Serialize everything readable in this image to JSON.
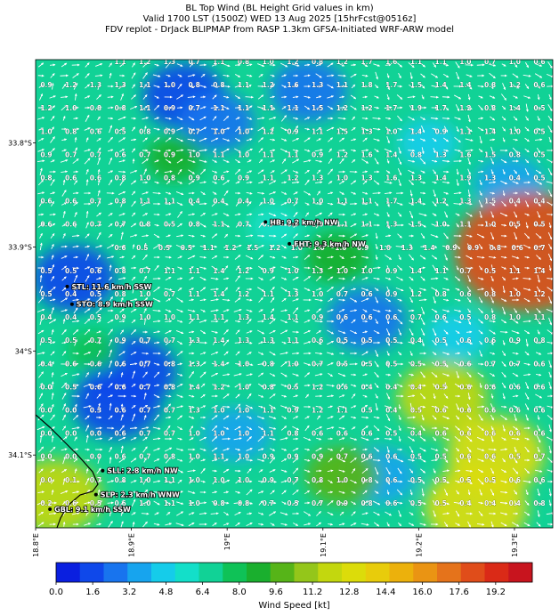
{
  "title": {
    "line1": "BL Top Wind (BL Height Grid values in km)",
    "line2": "Valid 1700 LST (1500Z) WED 13 Aug 2025 [15hrFcst@0516z]",
    "line3": "FDV replot - DrJack BLIPMAP from RASP 1.3km GFSA-Initiated WRF-ARW model"
  },
  "axes": {
    "lat_labels": [
      "33.8°S",
      "33.9°S",
      "34°S",
      "34.1°S"
    ],
    "lat_values": [
      -33.8,
      -33.9,
      -34.0,
      -34.1
    ],
    "lon_labels": [
      "18.8°E",
      "18.9°E",
      "19°E",
      "19.1°E",
      "19.2°E",
      "19.3°E"
    ],
    "lon_values": [
      18.8,
      18.9,
      19.0,
      19.1,
      19.2,
      19.3
    ],
    "lon_range": [
      18.8,
      19.34
    ],
    "lat_range": [
      -34.17,
      -33.72
    ]
  },
  "grid_values": [
    [
      "1.1",
      "1.2",
      "1.3",
      "0.7",
      "1.1",
      "0.8",
      "1.0",
      "1.2",
      "0.8",
      "1.2",
      "1.7",
      "1.6",
      "1.1",
      "1.1",
      "1.0",
      "0.7",
      "1.0",
      "0.6"
    ],
    [
      "0.9",
      "1.2",
      "1.3",
      "1.3",
      "1.1",
      "1.0",
      "0.8",
      "0.8",
      "1.1",
      "1.2",
      "1.6",
      "1.3",
      "1.1",
      "1.8",
      "1.7",
      "1.5",
      "1.4",
      "1.4",
      "0.8",
      "1.2",
      "0.6"
    ],
    [
      "1.2",
      "1.0",
      "0.8",
      "0.8",
      "1.1",
      "0.9",
      "0.7",
      "1.1",
      "1.1",
      "1.1",
      "1.1",
      "1.5",
      "1.2",
      "1.2",
      "1.7",
      "1.9",
      "1.7",
      "1.2",
      "0.8",
      "1.4",
      "0.5"
    ],
    [
      "1.0",
      "0.8",
      "0.6",
      "0.5",
      "0.8",
      "0.9",
      "0.7",
      "1.0",
      "1.0",
      "1.2",
      "0.9",
      "1.1",
      "1.5",
      "1.3",
      "1.0",
      "1.4",
      "0.9",
      "1.1",
      "1.4",
      "1.0",
      "0.5"
    ],
    [
      "0.9",
      "0.7",
      "0.7",
      "0.6",
      "0.7",
      "0.9",
      "1.0",
      "1.1",
      "1.0",
      "1.1",
      "1.1",
      "0.9",
      "1.2",
      "1.6",
      "1.4",
      "0.8",
      "1.3",
      "1.6",
      "1.5",
      "0.8",
      "0.5"
    ],
    [
      "0.8",
      "0.6",
      "0.6",
      "0.8",
      "1.0",
      "0.8",
      "0.9",
      "0.6",
      "0.9",
      "1.1",
      "1.2",
      "1.3",
      "1.0",
      "1.3",
      "1.6",
      "1.3",
      "1.4",
      "1.9",
      "1.3",
      "0.4",
      "0.5"
    ],
    [
      "0.6",
      "0.6",
      "0.7",
      "0.8",
      "1.1",
      "1.1",
      "0.4",
      "0.4",
      "0.4",
      "1.0",
      "0.7",
      "1.0",
      "1.1",
      "1.1",
      "1.7",
      "1.4",
      "1.2",
      "1.3",
      "1.5",
      "0.4",
      "0.4"
    ],
    [
      "0.6",
      "0.6",
      "0.7",
      "0.7",
      "0.8",
      "0.5",
      "0.8",
      "1.1",
      "0.7",
      "0.7",
      "0.9",
      "1.0",
      "1.1",
      "1.1",
      "1.3",
      "1.5",
      "1.0",
      "1.1",
      "1.0",
      "0.5",
      "0.5"
    ],
    [
      "0.6",
      "0.5",
      "0.5",
      "0.5",
      "1.1",
      "1.2",
      "1.5",
      "1.2",
      "1.0",
      "1.0",
      "1.0",
      "0.9",
      "1.0",
      "1.3",
      "1.4",
      "0.9",
      "0.9",
      "0.8",
      "0.6",
      "0.7"
    ],
    [
      "0.5",
      "0.5",
      "0.6",
      "0.8",
      "0.7",
      "1.1",
      "1.1",
      "1.4",
      "1.2",
      "0.9",
      "1.0",
      "1.3",
      "1.0",
      "1.0",
      "0.9",
      "1.4",
      "1.1",
      "0.7",
      "0.5",
      "1.1",
      "1.4"
    ],
    [
      "0.5",
      "0.4",
      "0.5",
      "0.8",
      "1.0",
      "0.7",
      "1.1",
      "1.4",
      "1.2",
      "1.1",
      "1.3",
      "1.0",
      "0.7",
      "0.6",
      "0.9",
      "1.2",
      "0.8",
      "0.6",
      "0.8",
      "1.0",
      "1.2"
    ],
    [
      "0.4",
      "0.4",
      "0.5",
      "0.9",
      "1.0",
      "1.0",
      "1.1",
      "1.1",
      "1.3",
      "1.4",
      "1.1",
      "0.9",
      "0.6",
      "0.6",
      "0.6",
      "0.7",
      "0.6",
      "0.5",
      "0.8",
      "1.0",
      "1.1"
    ],
    [
      "0.5",
      "0.5",
      "0.7",
      "0.9",
      "0.7",
      "0.7",
      "1.3",
      "1.4",
      "1.3",
      "1.3",
      "1.1",
      "0.6",
      "0.5",
      "0.5",
      "0.5",
      "0.4",
      "0.5",
      "0.6",
      "0.6",
      "0.9",
      "0.8"
    ],
    [
      "0.4",
      "0.6",
      "0.6",
      "0.6",
      "0.7",
      "0.8",
      "1.3",
      "1.4",
      "1.0",
      "0.8",
      "1.0",
      "0.7",
      "0.5",
      "0.5",
      "0.5",
      "0.5",
      "0.5",
      "0.6",
      "0.7",
      "0.7",
      "0.6"
    ],
    [
      "0.0",
      "0.5",
      "0.6",
      "0.6",
      "0.7",
      "0.8",
      "1.4",
      "1.2",
      "1.0",
      "0.8",
      "0.5",
      "1.2",
      "0.6",
      "0.4",
      "0.4",
      "0.4",
      "0.5",
      "0.6",
      "0.6",
      "0.6",
      "0.6"
    ],
    [
      "0.0",
      "0.0",
      "0.3",
      "0.6",
      "0.7",
      "0.7",
      "1.3",
      "1.0",
      "1.0",
      "1.1",
      "0.9",
      "1.2",
      "1.1",
      "0.5",
      "0.4",
      "0.5",
      "0.6",
      "0.6",
      "0.6",
      "0.6",
      "0.6"
    ],
    [
      "0.0",
      "0.0",
      "0.0",
      "0.6",
      "0.7",
      "0.7",
      "1.0",
      "1.0",
      "1.0",
      "1.1",
      "0.8",
      "0.6",
      "0.6",
      "0.6",
      "0.5",
      "0.4",
      "0.6",
      "0.6",
      "0.6",
      "0.6",
      "0.6"
    ],
    [
      "0.0",
      "0.0",
      "0.0",
      "0.6",
      "0.7",
      "0.8",
      "1.0",
      "1.1",
      "1.0",
      "0.9",
      "0.9",
      "0.9",
      "0.7",
      "0.6",
      "0.6",
      "0.5",
      "0.5",
      "0.6",
      "0.6",
      "0.5",
      "0.7"
    ],
    [
      "0.0",
      "0.1",
      "0.7",
      "0.8",
      "1.0",
      "1.1",
      "1.0",
      "1.0",
      "1.0",
      "0.9",
      "0.7",
      "0.8",
      "1.0",
      "0.8",
      "0.6",
      "0.5",
      "0.5",
      "0.5",
      "0.5",
      "0.6",
      "0.6"
    ],
    [
      "0.2",
      "0.6",
      "0.5",
      "0.6",
      "1.0",
      "1.1",
      "1.0",
      "0.8",
      "0.8",
      "0.7",
      "0.5",
      "0.7",
      "0.9",
      "0.8",
      "0.6",
      "0.5",
      "0.5",
      "0.4",
      "0.4",
      "0.4",
      "0.8"
    ]
  ],
  "stations": [
    {
      "label": "HB: 9.2 km/h NW",
      "lon": 19.04,
      "lat": -33.876
    },
    {
      "label": "FHT: 9.3 km/h NW",
      "lon": 19.065,
      "lat": -33.897
    },
    {
      "label": "STL: 11.6 km/h SSW",
      "lon": 18.833,
      "lat": -33.938
    },
    {
      "label": "STO: 8.9 km/h SSW",
      "lon": 18.838,
      "lat": -33.955
    },
    {
      "label": "SLL: 2.8 km/h NW",
      "lon": 18.87,
      "lat": -34.115
    },
    {
      "label": "SLP: 2.3 km/h WNW",
      "lon": 18.863,
      "lat": -34.138
    },
    {
      "label": "GBL: 9.1 km/h SSW",
      "lon": 18.815,
      "lat": -34.152
    }
  ],
  "colorbar": {
    "title": "Wind Speed [kt]",
    "ticks": [
      "0.0",
      "1.6",
      "3.2",
      "4.8",
      "6.4",
      "8.0",
      "9.6",
      "11.2",
      "12.8",
      "14.4",
      "16.0",
      "17.6",
      "19.2"
    ],
    "min": 0,
    "max": 20.8,
    "colors": [
      "#0a1fe0",
      "#0f48ea",
      "#1874ee",
      "#17a4ee",
      "#15ccea",
      "#13dfc9",
      "#11d296",
      "#0fc257",
      "#1aaf2e",
      "#56b418",
      "#94c61a",
      "#c3d70e",
      "#dcdc0a",
      "#e8cc0b",
      "#ecb10c",
      "#ea9413",
      "#e5731b",
      "#e04d1a",
      "#da2a17",
      "#c8141e"
    ]
  },
  "field": {
    "blobs": [
      {
        "lon": 18.955,
        "lat": -33.755,
        "speed": 2.0
      },
      {
        "lon": 18.99,
        "lat": -33.78,
        "speed": 3.0
      },
      {
        "lon": 19.085,
        "lat": -33.75,
        "speed": 2.6
      },
      {
        "lon": 19.21,
        "lat": -33.8,
        "speed": 4.4
      },
      {
        "lon": 19.295,
        "lat": -33.84,
        "speed": 3.2
      },
      {
        "lon": 18.84,
        "lat": -33.93,
        "speed": 2.0
      },
      {
        "lon": 18.9,
        "lat": -34.02,
        "speed": 1.2
      },
      {
        "lon": 18.885,
        "lat": -34.05,
        "speed": 1.4
      },
      {
        "lon": 19.145,
        "lat": -33.97,
        "speed": 2.4
      },
      {
        "lon": 19.05,
        "lat": -33.88,
        "speed": 5.2
      },
      {
        "lon": 19.24,
        "lat": -33.985,
        "speed": 4.2
      },
      {
        "lon": 19.01,
        "lat": -34.08,
        "speed": 3.6
      },
      {
        "lon": 19.16,
        "lat": -34.12,
        "speed": 3.2
      },
      {
        "lon": 19.225,
        "lat": -34.045,
        "speed": 12.0
      },
      {
        "lon": 19.28,
        "lat": -34.1,
        "speed": 12.8
      },
      {
        "lon": 19.26,
        "lat": -34.15,
        "speed": 13.4
      },
      {
        "lon": 19.315,
        "lat": -33.905,
        "speed": 18.2
      },
      {
        "lon": 18.82,
        "lat": -34.14,
        "speed": 12.4
      },
      {
        "lon": 18.945,
        "lat": -33.815,
        "speed": 8.4
      },
      {
        "lon": 19.115,
        "lat": -33.91,
        "speed": 9.2
      },
      {
        "lon": 19.12,
        "lat": -34.12,
        "speed": 10.2
      },
      {
        "lon": 18.86,
        "lat": -34.0,
        "speed": 7.8
      }
    ],
    "base_speed": 6.6
  }
}
